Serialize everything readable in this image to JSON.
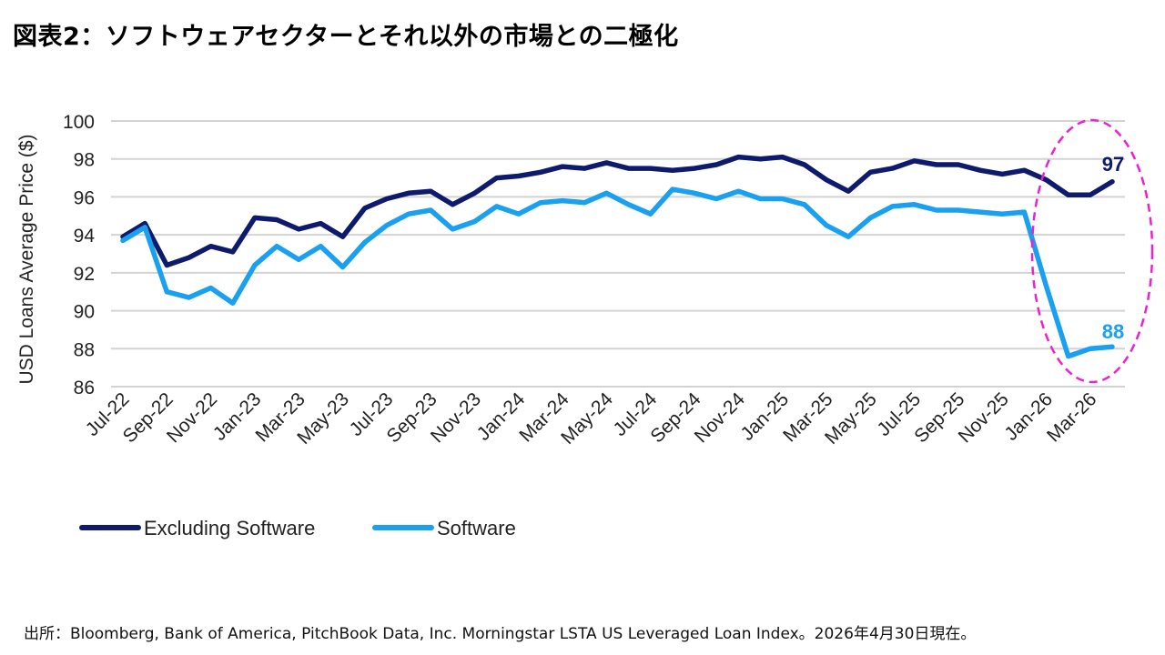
{
  "title": "図表2：ソフトウェアセクターとそれ以外の市場との二極化",
  "footnote": "出所：Bloomberg, Bank of America, PitchBook Data, Inc. Morningstar LSTA US Leveraged Loan Index。2026年4月30日現在。",
  "colors": {
    "excluding_software": "#0d1a6e",
    "software": "#1aa0f0",
    "highlight_ellipse": "#ee22cc",
    "grid": "#d3d3d3"
  },
  "chart_data": {
    "type": "line",
    "ylabel": "USD Loans Average Price ($)",
    "xlabel": "",
    "ylim": [
      86,
      100
    ],
    "yticks": [
      86,
      88,
      90,
      92,
      94,
      96,
      98,
      100
    ],
    "grid": "horizontal",
    "legend_position": "bottom-left",
    "x": [
      "Jul-22",
      "Aug-22",
      "Sep-22",
      "Oct-22",
      "Nov-22",
      "Dec-22",
      "Jan-23",
      "Feb-23",
      "Mar-23",
      "Apr-23",
      "May-23",
      "Jun-23",
      "Jul-23",
      "Aug-23",
      "Sep-23",
      "Oct-23",
      "Nov-23",
      "Dec-23",
      "Jan-24",
      "Feb-24",
      "Mar-24",
      "Apr-24",
      "May-24",
      "Jun-24",
      "Jul-24",
      "Aug-24",
      "Sep-24",
      "Oct-24",
      "Nov-24",
      "Dec-24",
      "Jan-25",
      "Feb-25",
      "Mar-25",
      "Apr-25",
      "May-25",
      "Jun-25",
      "Jul-25",
      "Aug-25",
      "Sep-25",
      "Oct-25",
      "Nov-25",
      "Dec-25",
      "Jan-26",
      "Feb-26",
      "Mar-26",
      "Apr-26"
    ],
    "xtick_labels": [
      "Jul-22",
      "Sep-22",
      "Nov-22",
      "Jan-23",
      "Mar-23",
      "May-23",
      "Jul-23",
      "Sep-23",
      "Nov-23",
      "Jan-24",
      "Mar-24",
      "May-24",
      "Jul-24",
      "Sep-24",
      "Nov-24",
      "Jan-25",
      "Mar-25",
      "May-25",
      "Jul-25",
      "Sep-25",
      "Nov-25",
      "Jan-26",
      "Mar-26"
    ],
    "series": [
      {
        "name": "Excluding Software",
        "values": [
          93.9,
          94.6,
          92.4,
          92.8,
          93.4,
          93.1,
          94.9,
          94.8,
          94.3,
          94.6,
          93.9,
          95.4,
          95.9,
          96.2,
          96.3,
          95.6,
          96.2,
          97.0,
          97.1,
          97.3,
          97.6,
          97.5,
          97.8,
          97.5,
          97.5,
          97.4,
          97.5,
          97.7,
          98.1,
          98.0,
          98.1,
          97.7,
          96.9,
          96.3,
          97.3,
          97.5,
          97.9,
          97.7,
          97.7,
          97.4,
          97.2,
          97.4,
          96.9,
          96.1,
          96.1,
          96.8
        ],
        "end_label": "97"
      },
      {
        "name": "Software",
        "values": [
          93.7,
          94.4,
          91.0,
          90.7,
          91.2,
          90.4,
          92.4,
          93.4,
          92.7,
          93.4,
          92.3,
          93.6,
          94.5,
          95.1,
          95.3,
          94.3,
          94.7,
          95.5,
          95.1,
          95.7,
          95.8,
          95.7,
          96.2,
          95.6,
          95.1,
          96.4,
          96.2,
          95.9,
          96.3,
          95.9,
          95.9,
          95.6,
          94.5,
          93.9,
          94.9,
          95.5,
          95.6,
          95.3,
          95.3,
          95.2,
          95.1,
          95.2,
          91.3,
          87.6,
          88.0,
          88.1
        ],
        "end_label": "88"
      }
    ]
  }
}
